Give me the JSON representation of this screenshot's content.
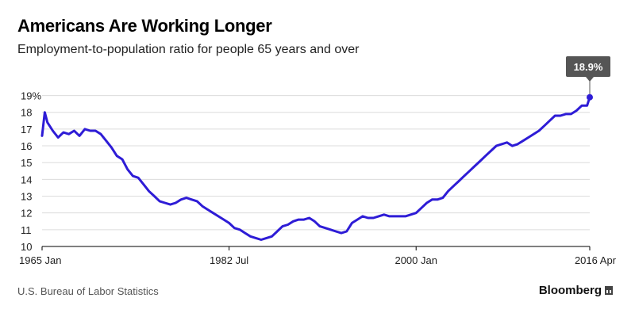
{
  "header": {
    "title": "Americans Are Working Longer",
    "subtitle": "Employment-to-population ratio for people 65 years and over"
  },
  "footer": {
    "source": "U.S. Bureau of Labor Statistics",
    "brand": "Bloomberg"
  },
  "chart_data": {
    "type": "line",
    "title": "Americans Are Working Longer",
    "subtitle": "Employment-to-population ratio for people 65 years and over",
    "unit": "%",
    "x_range": [
      "1965-01",
      "2016-04"
    ],
    "x_ticks": [
      {
        "date": "1965-01",
        "label": "1965 Jan"
      },
      {
        "date": "1982-07",
        "label": "1982 Jul"
      },
      {
        "date": "2000-01",
        "label": "2000 Jan"
      },
      {
        "date": "2016-04",
        "label": "2016 Apr"
      }
    ],
    "y_ticks": [
      {
        "value": 10,
        "label": "10"
      },
      {
        "value": 11,
        "label": "11"
      },
      {
        "value": 12,
        "label": "12"
      },
      {
        "value": 13,
        "label": "13"
      },
      {
        "value": 14,
        "label": "14"
      },
      {
        "value": 15,
        "label": "15"
      },
      {
        "value": 16,
        "label": "16"
      },
      {
        "value": 17,
        "label": "17"
      },
      {
        "value": 18,
        "label": "18"
      },
      {
        "value": 19,
        "label": "19%"
      }
    ],
    "ylim": [
      10,
      19.5
    ],
    "grid": true,
    "line_color": "#2e1cd6",
    "callout": {
      "date": "2016-04",
      "value": 18.9,
      "label": "18.9%"
    },
    "series": [
      {
        "points": [
          [
            "1965-01",
            16.6
          ],
          [
            "1965-04",
            18.0
          ],
          [
            "1965-07",
            17.4
          ],
          [
            "1966-01",
            16.9
          ],
          [
            "1966-07",
            16.5
          ],
          [
            "1967-01",
            16.8
          ],
          [
            "1967-07",
            16.7
          ],
          [
            "1968-01",
            16.9
          ],
          [
            "1968-07",
            16.6
          ],
          [
            "1969-01",
            17.0
          ],
          [
            "1969-07",
            16.9
          ],
          [
            "1970-01",
            16.9
          ],
          [
            "1970-07",
            16.7
          ],
          [
            "1971-01",
            16.3
          ],
          [
            "1971-07",
            15.9
          ],
          [
            "1972-01",
            15.4
          ],
          [
            "1972-07",
            15.2
          ],
          [
            "1973-01",
            14.6
          ],
          [
            "1973-07",
            14.2
          ],
          [
            "1974-01",
            14.1
          ],
          [
            "1974-07",
            13.7
          ],
          [
            "1975-01",
            13.3
          ],
          [
            "1975-07",
            13.0
          ],
          [
            "1976-01",
            12.7
          ],
          [
            "1976-07",
            12.6
          ],
          [
            "1977-01",
            12.5
          ],
          [
            "1977-07",
            12.6
          ],
          [
            "1978-01",
            12.8
          ],
          [
            "1978-07",
            12.9
          ],
          [
            "1979-01",
            12.8
          ],
          [
            "1979-07",
            12.7
          ],
          [
            "1980-01",
            12.4
          ],
          [
            "1980-07",
            12.2
          ],
          [
            "1981-01",
            12.0
          ],
          [
            "1981-07",
            11.8
          ],
          [
            "1982-01",
            11.6
          ],
          [
            "1982-07",
            11.4
          ],
          [
            "1983-01",
            11.1
          ],
          [
            "1983-07",
            11.0
          ],
          [
            "1984-01",
            10.8
          ],
          [
            "1984-07",
            10.6
          ],
          [
            "1985-01",
            10.5
          ],
          [
            "1985-07",
            10.4
          ],
          [
            "1986-01",
            10.5
          ],
          [
            "1986-07",
            10.6
          ],
          [
            "1987-01",
            10.9
          ],
          [
            "1987-07",
            11.2
          ],
          [
            "1988-01",
            11.3
          ],
          [
            "1988-07",
            11.5
          ],
          [
            "1989-01",
            11.6
          ],
          [
            "1989-07",
            11.6
          ],
          [
            "1990-01",
            11.7
          ],
          [
            "1990-07",
            11.5
          ],
          [
            "1991-01",
            11.2
          ],
          [
            "1991-07",
            11.1
          ],
          [
            "1992-01",
            11.0
          ],
          [
            "1992-07",
            10.9
          ],
          [
            "1993-01",
            10.8
          ],
          [
            "1993-07",
            10.9
          ],
          [
            "1994-01",
            11.4
          ],
          [
            "1994-07",
            11.6
          ],
          [
            "1995-01",
            11.8
          ],
          [
            "1995-07",
            11.7
          ],
          [
            "1996-01",
            11.7
          ],
          [
            "1996-07",
            11.8
          ],
          [
            "1997-01",
            11.9
          ],
          [
            "1997-07",
            11.8
          ],
          [
            "1998-01",
            11.8
          ],
          [
            "1998-07",
            11.8
          ],
          [
            "1999-01",
            11.8
          ],
          [
            "1999-07",
            11.9
          ],
          [
            "2000-01",
            12.0
          ],
          [
            "2000-07",
            12.3
          ],
          [
            "2001-01",
            12.6
          ],
          [
            "2001-07",
            12.8
          ],
          [
            "2002-01",
            12.8
          ],
          [
            "2002-07",
            12.9
          ],
          [
            "2003-01",
            13.3
          ],
          [
            "2003-07",
            13.6
          ],
          [
            "2004-01",
            13.9
          ],
          [
            "2004-07",
            14.2
          ],
          [
            "2005-01",
            14.5
          ],
          [
            "2005-07",
            14.8
          ],
          [
            "2006-01",
            15.1
          ],
          [
            "2006-07",
            15.4
          ],
          [
            "2007-01",
            15.7
          ],
          [
            "2007-07",
            16.0
          ],
          [
            "2008-01",
            16.1
          ],
          [
            "2008-07",
            16.2
          ],
          [
            "2009-01",
            16.0
          ],
          [
            "2009-07",
            16.1
          ],
          [
            "2010-01",
            16.3
          ],
          [
            "2010-07",
            16.5
          ],
          [
            "2011-01",
            16.7
          ],
          [
            "2011-07",
            16.9
          ],
          [
            "2012-01",
            17.2
          ],
          [
            "2012-07",
            17.5
          ],
          [
            "2013-01",
            17.8
          ],
          [
            "2013-07",
            17.8
          ],
          [
            "2014-01",
            17.9
          ],
          [
            "2014-07",
            17.9
          ],
          [
            "2015-01",
            18.1
          ],
          [
            "2015-07",
            18.4
          ],
          [
            "2016-01",
            18.4
          ],
          [
            "2016-04",
            18.9
          ]
        ]
      }
    ]
  }
}
